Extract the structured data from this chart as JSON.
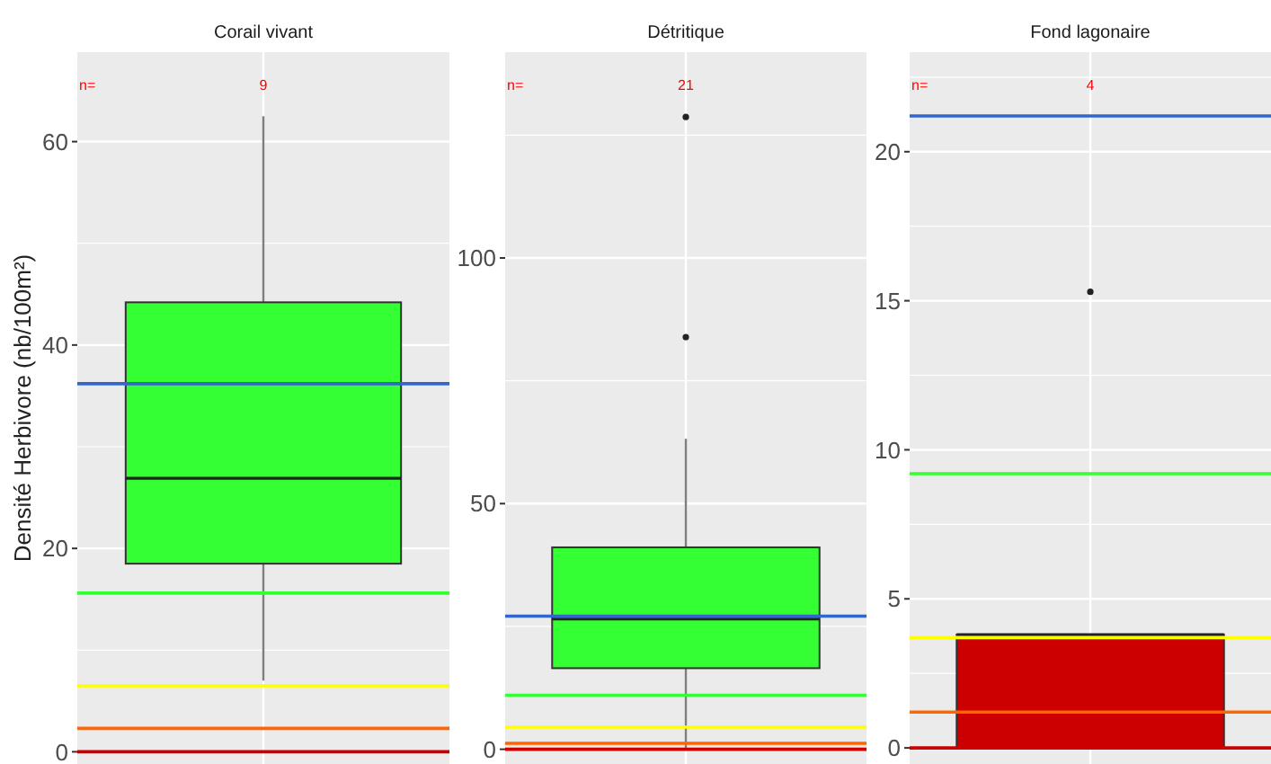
{
  "chart_data": [
    {
      "type": "box",
      "title": "Corail vivant",
      "ylabel": "Densité Herbivore (nb/100m²)",
      "categories": [
        null
      ],
      "series": [
        {
          "color": "#33ff33",
          "boxes": [
            {
              "low": 7.0,
              "q1": 18.5,
              "median": 26.9,
              "q3": 44.2,
              "high": 62.5
            }
          ]
        }
      ],
      "ylim": [
        -1.2,
        68.8
      ],
      "yticks": [
        0,
        20,
        40,
        60
      ],
      "grid": true,
      "ref_lines": [
        {
          "axis": "y",
          "value": 36.2,
          "color": "#3366cc"
        },
        {
          "axis": "y",
          "value": 15.6,
          "color": "#33ff33"
        },
        {
          "axis": "y",
          "value": 6.5,
          "color": "#ffff00"
        },
        {
          "axis": "y",
          "value": 2.3,
          "color": "#ff6600"
        },
        {
          "axis": "y",
          "value": 0,
          "color": "#cc0000"
        }
      ],
      "annotations": [
        "n=",
        "9"
      ]
    },
    {
      "type": "box",
      "title": "Détritique",
      "categories": [
        null
      ],
      "series": [
        {
          "color": "#33ff33",
          "boxes": [
            {
              "low": 0,
              "q1": 16.5,
              "median": 26.5,
              "q3": 41.1,
              "high": 63.2,
              "outliers": [
                83.9,
                128.7
              ]
            }
          ]
        }
      ],
      "ylim": [
        -3,
        141.9
      ],
      "yticks": [
        0,
        50,
        100
      ],
      "grid": true,
      "ref_lines": [
        {
          "axis": "y",
          "value": 27.1,
          "color": "#3366cc"
        },
        {
          "axis": "y",
          "value": 11.0,
          "color": "#33ff33"
        },
        {
          "axis": "y",
          "value": 4.5,
          "color": "#ffff00"
        },
        {
          "axis": "y",
          "value": 1.2,
          "color": "#ff6600"
        },
        {
          "axis": "y",
          "value": 0,
          "color": "#cc0000"
        }
      ],
      "annotations": [
        "n=",
        "21"
      ]
    },
    {
      "type": "box",
      "title": "Fond lagonaire",
      "categories": [
        null
      ],
      "series": [
        {
          "color": "#cc0000",
          "boxes": [
            {
              "low": 0,
              "q1": 0,
              "median": 3.8,
              "q3": 3.8,
              "high": 3.8,
              "outliers": [
                15.3
              ]
            }
          ]
        }
      ],
      "ylim": [
        -0.54,
        23.34
      ],
      "yticks": [
        0,
        5,
        10,
        15,
        20
      ],
      "grid": true,
      "ref_lines": [
        {
          "axis": "y",
          "value": 21.2,
          "color": "#3366cc"
        },
        {
          "axis": "y",
          "value": 9.2,
          "color": "#33ff33"
        },
        {
          "axis": "y",
          "value": 3.7,
          "color": "#ffff00"
        },
        {
          "axis": "y",
          "value": 1.2,
          "color": "#ff6600"
        },
        {
          "axis": "y",
          "value": 0,
          "color": "#cc0000"
        }
      ],
      "annotations": [
        "n=",
        "4"
      ]
    }
  ]
}
